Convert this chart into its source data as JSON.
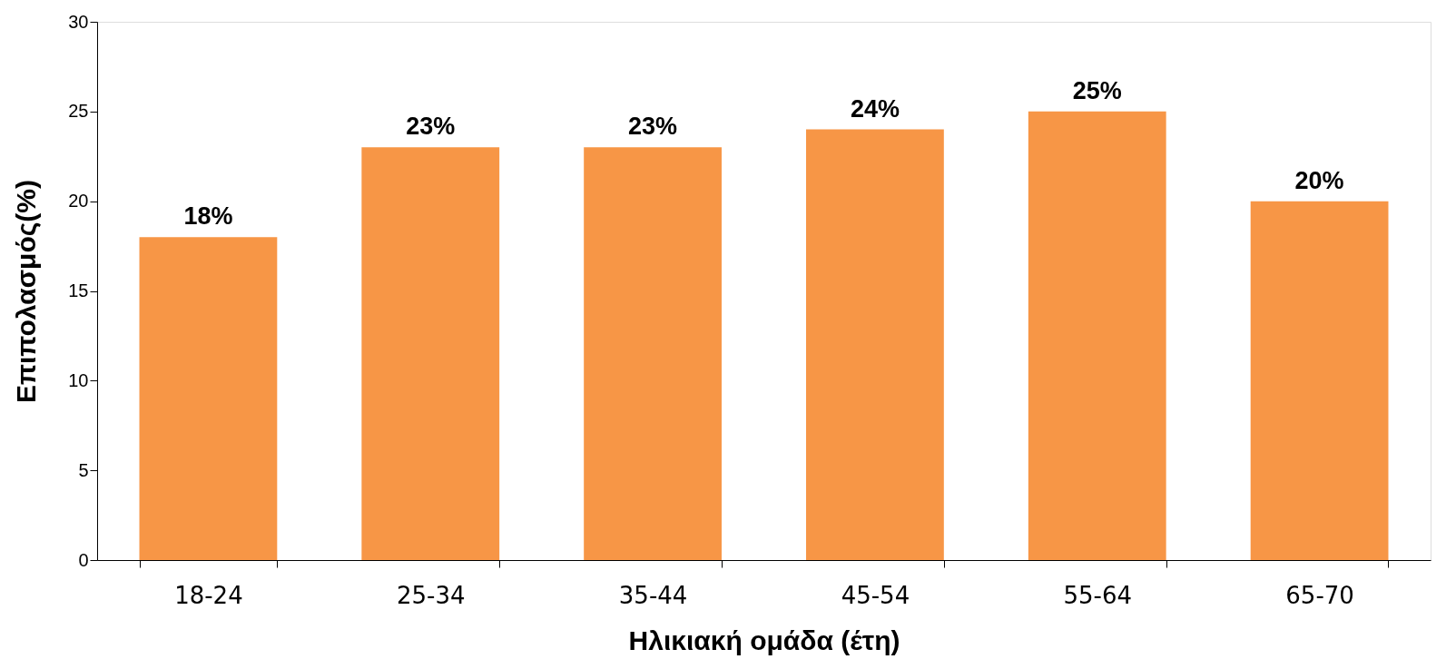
{
  "chart_data": {
    "type": "bar",
    "xlabel": "Ηλικιακή ομάδα (έτη)",
    "ylabel": "Επιπολασμός(%)",
    "categories": [
      "18-24",
      "25-34",
      "35-44",
      "45-54",
      "55-64",
      "65-70"
    ],
    "values": [
      18,
      23,
      23,
      24,
      25,
      20
    ],
    "value_labels": [
      "18%",
      "23%",
      "23%",
      "24%",
      "25%",
      "20%"
    ],
    "color": "#f79646",
    "ylim": [
      0,
      30
    ],
    "yticks": [
      0,
      5,
      10,
      15,
      20,
      25,
      30
    ],
    "grid": false
  }
}
